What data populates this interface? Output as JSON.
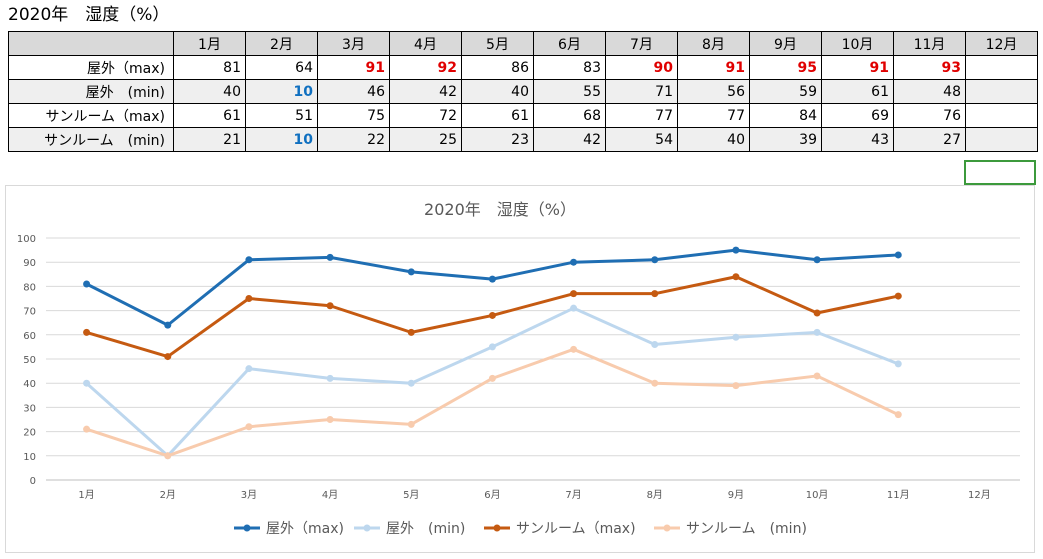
{
  "sheet": {
    "title": "2020年　湿度（%）"
  },
  "table": {
    "columns": [
      "1月",
      "2月",
      "3月",
      "4月",
      "5月",
      "6月",
      "7月",
      "8月",
      "9月",
      "10月",
      "11月",
      "12月"
    ],
    "rows": [
      {
        "label": "屋外（max)",
        "values": [
          "81",
          "64",
          "91",
          "92",
          "86",
          "83",
          "90",
          "91",
          "95",
          "91",
          "93",
          ""
        ],
        "shade": false
      },
      {
        "label": "屋外　(min)",
        "values": [
          "40",
          "10",
          "46",
          "42",
          "40",
          "55",
          "71",
          "56",
          "59",
          "61",
          "48",
          ""
        ],
        "shade": true
      },
      {
        "label": "サンルーム（max)",
        "values": [
          "61",
          "51",
          "75",
          "72",
          "61",
          "68",
          "77",
          "77",
          "84",
          "69",
          "76",
          ""
        ],
        "shade": false
      },
      {
        "label": "サンルーム　(min)",
        "values": [
          "21",
          "10",
          "22",
          "25",
          "23",
          "42",
          "54",
          "40",
          "39",
          "43",
          "27",
          ""
        ],
        "shade": true
      }
    ],
    "highlight_red": [
      [
        0,
        2
      ],
      [
        0,
        3
      ],
      [
        0,
        6
      ],
      [
        0,
        7
      ],
      [
        0,
        8
      ],
      [
        0,
        9
      ],
      [
        0,
        10
      ]
    ],
    "highlight_blue": [
      [
        1,
        1
      ],
      [
        3,
        1
      ]
    ],
    "colors": {
      "red": "#e00000",
      "blue": "#1070c0"
    }
  },
  "chart_data": {
    "type": "line",
    "title": "2020年　湿度（%）",
    "categories": [
      "1月",
      "2月",
      "3月",
      "4月",
      "5月",
      "6月",
      "7月",
      "8月",
      "9月",
      "10月",
      "11月",
      "12月"
    ],
    "series": [
      {
        "name": "屋外（max)",
        "color": "#1f6eb3",
        "values": [
          81,
          64,
          91,
          92,
          86,
          83,
          90,
          91,
          95,
          91,
          93,
          null
        ]
      },
      {
        "name": "屋外　(min)",
        "color": "#bdd7ee",
        "values": [
          40,
          10,
          46,
          42,
          40,
          55,
          71,
          56,
          59,
          61,
          48,
          null
        ]
      },
      {
        "name": "サンルーム（max)",
        "color": "#c55a11",
        "values": [
          61,
          51,
          75,
          72,
          61,
          68,
          77,
          77,
          84,
          69,
          76,
          null
        ]
      },
      {
        "name": "サンルーム　(min)",
        "color": "#f8cbad",
        "values": [
          21,
          10,
          22,
          25,
          23,
          42,
          54,
          40,
          39,
          43,
          27,
          null
        ]
      }
    ],
    "ylim": [
      0,
      100
    ],
    "yticks": [
      0,
      10,
      20,
      30,
      40,
      50,
      60,
      70,
      80,
      90,
      100
    ],
    "grid": true,
    "legend": "bottom"
  }
}
